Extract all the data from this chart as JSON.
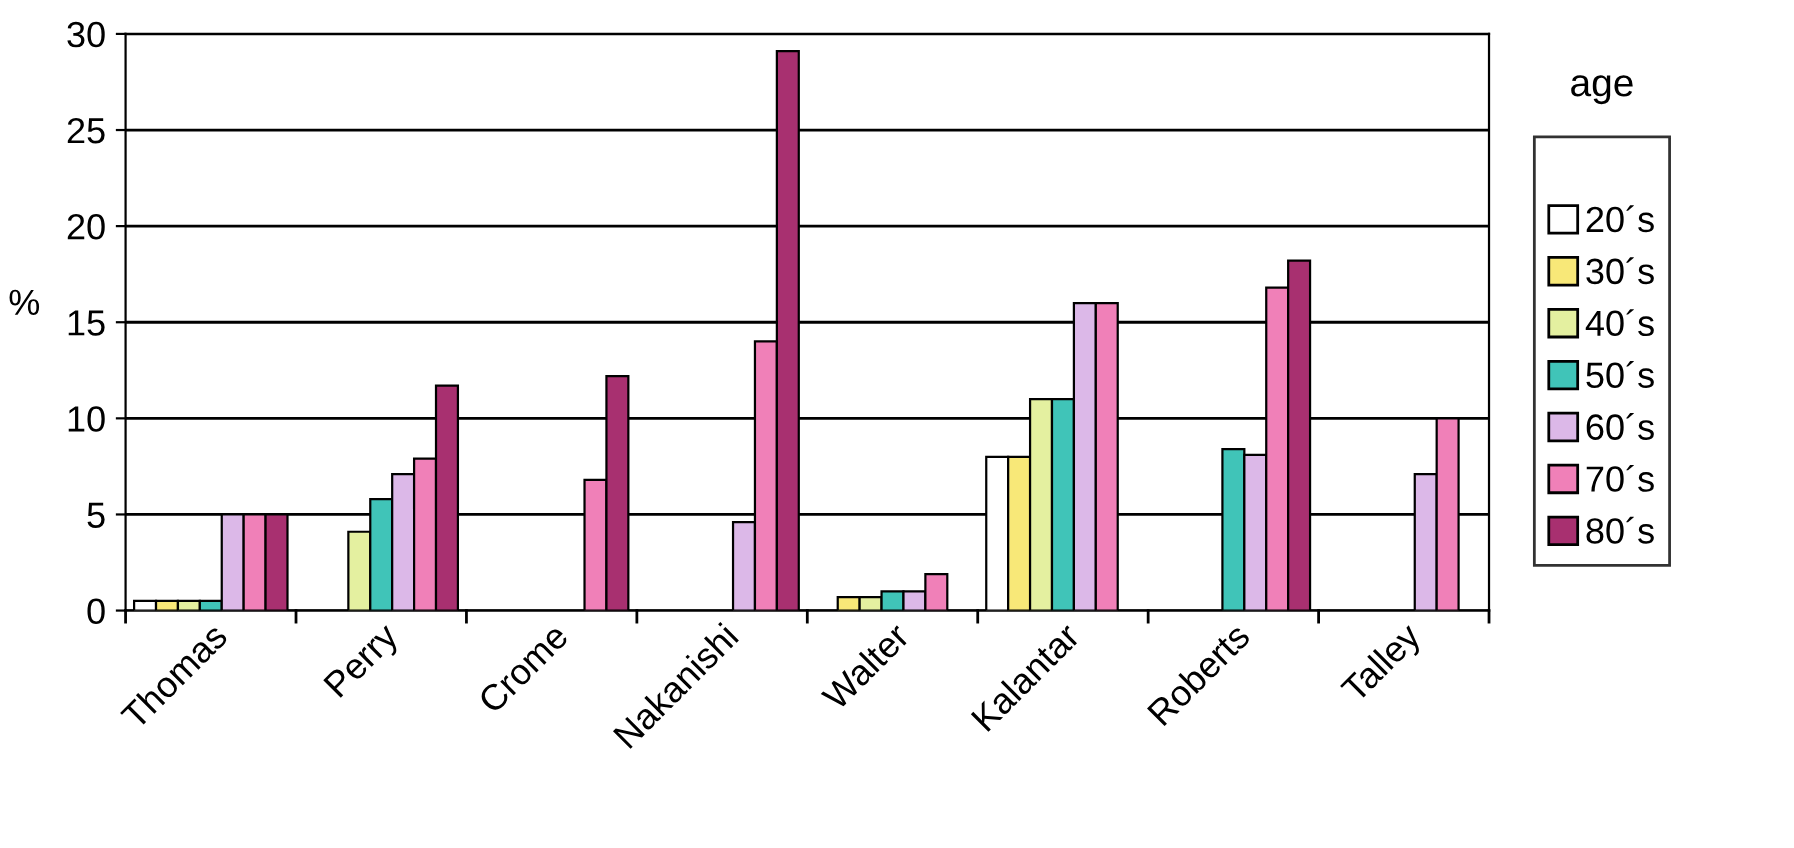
{
  "chart_data": {
    "type": "bar",
    "ylabel": "%",
    "legend_title": "age",
    "legend": "right",
    "grid": "y",
    "categories": [
      "Thomas",
      "Perry",
      "Crome",
      "Nakanishi",
      "Walter",
      "Kalantar",
      "Roberts",
      "Talley"
    ],
    "ylim": [
      0,
      30
    ],
    "yticks": [
      0,
      5,
      10,
      15,
      20,
      25,
      30
    ],
    "series": [
      {
        "name": "20´s",
        "color": "#ffffff",
        "values": [
          0.5,
          null,
          null,
          null,
          null,
          8,
          null,
          null
        ]
      },
      {
        "name": "30´s",
        "color": "#f8e878",
        "values": [
          0.5,
          null,
          null,
          null,
          0.7,
          8,
          null,
          null
        ]
      },
      {
        "name": "40´s",
        "color": "#e4f0a0",
        "values": [
          0.5,
          4.1,
          null,
          null,
          0.7,
          11,
          null,
          null
        ]
      },
      {
        "name": "50´s",
        "color": "#40c4b8",
        "values": [
          0.5,
          5.8,
          null,
          null,
          1.0,
          11,
          8.4,
          null
        ]
      },
      {
        "name": "60´s",
        "color": "#dcb8e8",
        "values": [
          5,
          7.1,
          null,
          4.6,
          1.0,
          16,
          8.1,
          7.1
        ]
      },
      {
        "name": "70´s",
        "color": "#f080b8",
        "values": [
          5,
          7.9,
          6.8,
          14,
          1.9,
          16,
          16.8,
          10
        ]
      },
      {
        "name": "80´s",
        "color": "#a83070",
        "values": [
          5,
          11.7,
          12.2,
          29.1,
          null,
          null,
          18.2,
          null
        ]
      }
    ]
  }
}
